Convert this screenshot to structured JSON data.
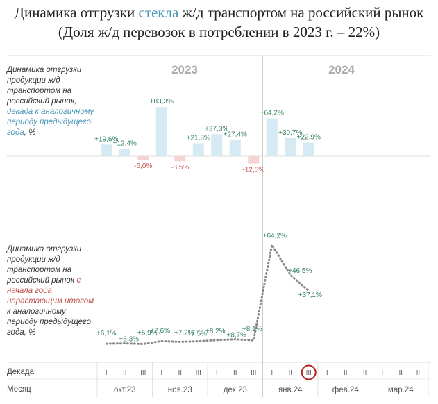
{
  "title": {
    "line1_pre": "Динамика отгрузки ",
    "line1_highlight": "стекла",
    "line1_post": " ж/д транспортом на российский рынок",
    "line2": "(Доля ж/д перевозок в потреблении в 2023 г. – 22%)"
  },
  "years": [
    "2023",
    "2024"
  ],
  "top_desc": {
    "part1": "Динамика отгрузки продукции ж/д транспортом на российский рынок,",
    "part2": "декада к аналогичному периоду предыдущего года",
    "part3": ", %"
  },
  "bottom_desc": {
    "part1": "Динамика отгрузки продукции ж/д транспортом на российский рынок",
    "part2": "с начала года нарастающим итогом",
    "part3": "к аналогичному периоду предыдущего года, %"
  },
  "axis": {
    "decade_label": "Декада",
    "month_label": "Месяц",
    "decade_ticks": [
      "I",
      "II",
      "III"
    ],
    "months": [
      "окт.23",
      "ноя.23",
      "дек.23",
      "янв.24",
      "фев.24",
      "мар.24"
    ],
    "highlighted_decade": "янв.24 III"
  },
  "colors": {
    "positive_bar": "#d6eaf4",
    "negative_bar": "#f6d3d3",
    "positive_label": "#2e7d5b",
    "negative_label": "#c0504d",
    "line": "#888888",
    "highlight_circle": "#b22222",
    "accent_blue": "#4a96b8"
  },
  "chart_data": [
    {
      "type": "bar",
      "categories": [
        "окт.23 I",
        "окт.23 II",
        "окт.23 III",
        "ноя.23 I",
        "ноя.23 II",
        "ноя.23 III",
        "дек.23 I",
        "дек.23 II",
        "дек.23 III",
        "янв.24 I",
        "янв.24 II",
        "янв.24 III"
      ],
      "values": [
        19.6,
        12.4,
        -6.0,
        83.3,
        -8.5,
        21.8,
        37.3,
        27.4,
        -12.5,
        64.2,
        30.7,
        22.9
      ],
      "labels": [
        "+19,6%",
        "+12,4%",
        "-6,0%",
        "+83,3%",
        "-8,5%",
        "+21,8%",
        "+37,3%",
        "+27,4%",
        "-12,5%",
        "+64,2%",
        "+30,7%",
        "+22,9%"
      ],
      "ylim": [
        -15,
        90
      ]
    },
    {
      "type": "line",
      "categories": [
        "окт.23 I",
        "окт.23 II",
        "окт.23 III",
        "ноя.23 I",
        "ноя.23 II",
        "ноя.23 III",
        "дек.23 I",
        "дек.23 II",
        "дек.23 III",
        "янв.24 I",
        "янв.24 II",
        "янв.24 III"
      ],
      "values": [
        6.1,
        6.3,
        5.9,
        7.6,
        7.2,
        7.5,
        8.2,
        8.7,
        8.1,
        64.2,
        46.5,
        37.1
      ],
      "labels": [
        "+6,1%",
        "+6,3%",
        "+5,9%",
        "+7,6%",
        "+7,2%",
        "+7,5%",
        "+8,2%",
        "+8,7%",
        "+8,1%",
        "+64,2%",
        "+46,5%",
        "+37,1%"
      ],
      "ylim": [
        0,
        70
      ]
    }
  ]
}
